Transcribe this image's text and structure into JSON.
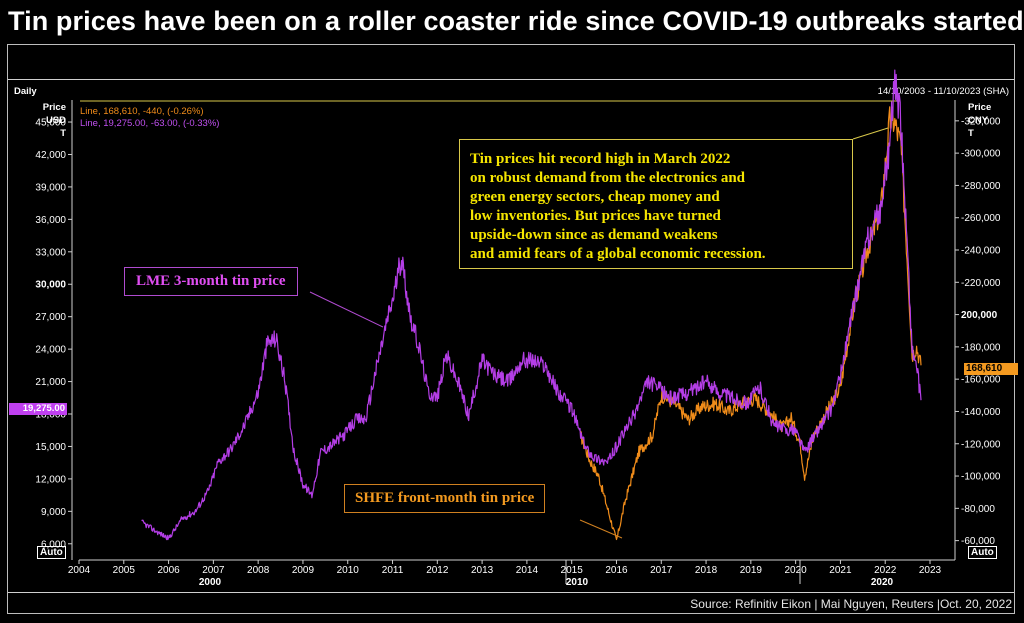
{
  "title": "Tin prices have been on a roller coaster ride since COVID-19 outbreaks started",
  "header": {
    "frequency": "Daily",
    "date_range": "14/10/2003 - 11/10/2023 (SHA)",
    "left_axis_unit": [
      "Price",
      "USD",
      "T"
    ],
    "right_axis_unit": [
      "Price",
      "CNY",
      "T"
    ]
  },
  "legend": {
    "lme": "Line, 19,275.00, -63.00, (-0.33%)",
    "shfe": "Line, 168,610, -440, (-0.26%)"
  },
  "last_values": {
    "lme": "19,275.00",
    "shfe": "168,610"
  },
  "annotation": "Tin prices hit record high in March 2022\non robust demand from the electronics and\ngreen energy sectors, cheap money and\nlow inventories. But prices have turned\nupside-down since as demand weakens\nand amid fears of a global economic recession.",
  "labels": {
    "lme": "LME 3-month tin price",
    "shfe": "SHFE front-month tin price"
  },
  "auto_label": "Auto",
  "source": "Source: Refinitiv Eikon | Mai Nguyen, Reuters |Oct. 20, 2022",
  "colors": {
    "lme": "#b43ee6",
    "shfe": "#f08c1a",
    "annotation": "#f6e600",
    "background": "#000000"
  },
  "chart_data": {
    "type": "line",
    "x_axis": {
      "ticks": [
        2004,
        2005,
        2006,
        2007,
        2008,
        2009,
        2010,
        2011,
        2012,
        2013,
        2014,
        2015,
        2016,
        2017,
        2018,
        2019,
        2020,
        2021,
        2022,
        2023
      ],
      "decade_labels": [
        {
          "x": 2000.0,
          "label": "2000"
        },
        {
          "x": 2010.0,
          "label": "2010"
        },
        {
          "x": 2020.0,
          "label": "2020"
        }
      ],
      "xlim": [
        2004,
        2023
      ]
    },
    "y_left": {
      "label": "Price USD T",
      "ticks": [
        6000,
        9000,
        12000,
        15000,
        18000,
        21000,
        24000,
        27000,
        30000,
        33000,
        36000,
        39000,
        42000,
        45000
      ],
      "tick_labels": [
        "6,000",
        "9,000",
        "12,000",
        "15,000",
        "18,000",
        "21,000",
        "24,000",
        "27,000",
        "30,000",
        "33,000",
        "36,000",
        "39,000",
        "42,000",
        "45,000"
      ],
      "ylim": [
        4500,
        47500
      ]
    },
    "y_right": {
      "label": "Price CNY T",
      "ticks": [
        60000,
        80000,
        100000,
        120000,
        140000,
        160000,
        180000,
        200000,
        220000,
        240000,
        260000,
        280000,
        300000,
        320000
      ],
      "tick_labels": [
        "-60,000",
        "-80,000",
        "-100,000",
        "-120,000",
        "-140,000",
        "-160,000",
        "-180,000",
        "200,000",
        "-220,000",
        "-240,000",
        "-260,000",
        "-280,000",
        "-300,000",
        "-320,000"
      ],
      "ylim": [
        48000,
        336000
      ]
    },
    "series": [
      {
        "name": "LME 3-month tin price",
        "axis": "left",
        "x": [
          2005.4,
          2005.7,
          2006.0,
          2006.3,
          2006.6,
          2006.9,
          2007.1,
          2007.4,
          2007.7,
          2008.0,
          2008.2,
          2008.4,
          2008.6,
          2008.8,
          2009.0,
          2009.2,
          2009.4,
          2009.6,
          2009.9,
          2010.2,
          2010.4,
          2010.6,
          2010.9,
          2011.0,
          2011.2,
          2011.4,
          2011.6,
          2011.8,
          2012.0,
          2012.2,
          2012.5,
          2012.7,
          2013.0,
          2013.3,
          2013.6,
          2013.9,
          2014.1,
          2014.4,
          2014.7,
          2015.0,
          2015.3,
          2015.5,
          2015.8,
          2016.0,
          2016.4,
          2016.7,
          2016.9,
          2017.2,
          2017.5,
          2017.8,
          2018.0,
          2018.3,
          2018.6,
          2018.9,
          2019.2,
          2019.5,
          2019.8,
          2020.0,
          2020.2,
          2020.5,
          2020.8,
          2021.0,
          2021.3,
          2021.6,
          2021.9,
          2022.1,
          2022.2,
          2022.35,
          2022.5,
          2022.6,
          2022.7,
          2022.8
        ],
        "values": [
          8000,
          7200,
          6500,
          8300,
          9000,
          11000,
          13500,
          14800,
          17000,
          20000,
          24500,
          25000,
          21000,
          14500,
          11500,
          10500,
          14500,
          15000,
          16000,
          17500,
          17500,
          21500,
          27000,
          28500,
          32500,
          27000,
          24000,
          20000,
          19500,
          23500,
          20500,
          17800,
          23000,
          21500,
          21000,
          23000,
          23000,
          22500,
          20000,
          18500,
          15000,
          14000,
          13500,
          15000,
          18000,
          21000,
          20500,
          19500,
          19800,
          20500,
          21000,
          20000,
          19500,
          19000,
          20500,
          17000,
          16500,
          16500,
          14500,
          16500,
          18500,
          21500,
          28000,
          34000,
          37000,
          43000,
          49000,
          45000,
          33000,
          24000,
          22500,
          19275
        ]
      },
      {
        "name": "SHFE front-month tin price",
        "axis": "right",
        "x": [
          2015.2,
          2015.4,
          2015.6,
          2015.9,
          2016.0,
          2016.2,
          2016.5,
          2016.8,
          2017.0,
          2017.3,
          2017.6,
          2017.9,
          2018.2,
          2018.5,
          2018.8,
          2019.1,
          2019.4,
          2019.7,
          2019.9,
          2020.1,
          2020.2,
          2020.4,
          2020.7,
          2021.0,
          2021.3,
          2021.6,
          2021.9,
          2022.1,
          2022.2,
          2022.35,
          2022.5,
          2022.6,
          2022.7,
          2022.8
        ],
        "values": [
          125000,
          110000,
          100000,
          70000,
          60000,
          85000,
          115000,
          125000,
          150000,
          145000,
          135000,
          143000,
          145000,
          140000,
          145000,
          148000,
          140000,
          130000,
          136000,
          120000,
          100000,
          125000,
          140000,
          155000,
          205000,
          240000,
          265000,
          320000,
          320000,
          305000,
          230000,
          175000,
          180000,
          168610
        ]
      }
    ]
  }
}
